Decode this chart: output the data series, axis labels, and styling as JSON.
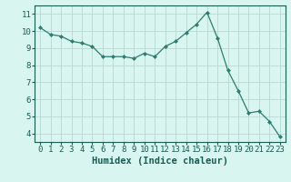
{
  "x": [
    0,
    1,
    2,
    3,
    4,
    5,
    6,
    7,
    8,
    9,
    10,
    11,
    12,
    13,
    14,
    15,
    16,
    17,
    18,
    19,
    20,
    21,
    22,
    23
  ],
  "y": [
    10.2,
    9.8,
    9.7,
    9.4,
    9.3,
    9.1,
    8.5,
    8.5,
    8.5,
    8.4,
    8.7,
    8.5,
    9.1,
    9.4,
    9.9,
    10.4,
    11.1,
    9.6,
    7.7,
    6.5,
    5.2,
    5.3,
    4.7,
    3.8
  ],
  "xlim": [
    -0.5,
    23.5
  ],
  "ylim": [
    3.5,
    11.5
  ],
  "yticks": [
    4,
    5,
    6,
    7,
    8,
    9,
    10,
    11
  ],
  "xticks": [
    0,
    1,
    2,
    3,
    4,
    5,
    6,
    7,
    8,
    9,
    10,
    11,
    12,
    13,
    14,
    15,
    16,
    17,
    18,
    19,
    20,
    21,
    22,
    23
  ],
  "xlabel": "Humidex (Indice chaleur)",
  "line_color": "#2e7d6e",
  "marker": "D",
  "marker_size": 2.0,
  "bg_color": "#d8f5f0",
  "grid_color": "#b8d8d4",
  "axes_color": "#1a5c52",
  "xlabel_fontsize": 7.5,
  "tick_fontsize": 6.5
}
